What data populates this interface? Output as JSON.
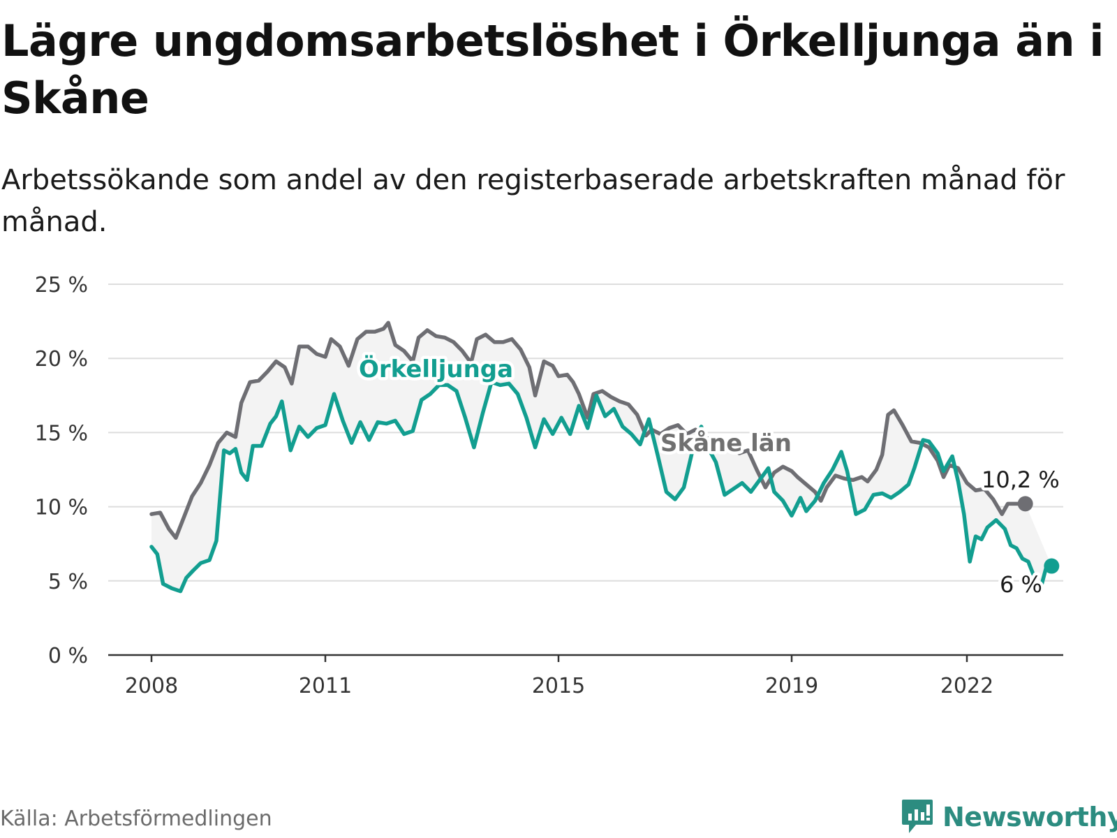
{
  "header": {
    "title": "Lägre ungdomsarbetslöshet i Örkelljunga än i Skåne",
    "subtitle": "Arbetssökande som andel av den registerbaserade arbetskraften månad för månad."
  },
  "footer": {
    "source": "Källa: Arbetsförmedlingen",
    "brand": "Newsworthy"
  },
  "colors": {
    "orkelljunga": "#129e90",
    "skane": "#6e6e73",
    "band": "#f3f3f3",
    "grid": "#dddddd",
    "axis": "#333333"
  },
  "chart_data": {
    "type": "line",
    "title": "Lägre ungdomsarbetslöshet i Örkelljunga än i Skåne",
    "xlabel": "",
    "ylabel": "",
    "xlim": [
      2008,
      2023.0
    ],
    "ylim": [
      0,
      25
    ],
    "y_ticks": [
      0,
      5,
      10,
      15,
      20,
      25
    ],
    "y_tick_labels": [
      "0 %",
      "5 %",
      "10 %",
      "15 %",
      "20 %",
      "25 %"
    ],
    "x_ticks": [
      2008,
      2011,
      2015,
      2019,
      2022
    ],
    "x_tick_labels": [
      "2008",
      "2011",
      "2015",
      "2019",
      "2022"
    ],
    "grid": true,
    "series": [
      {
        "name": "Skåne län",
        "label": "Skåne län",
        "end_label": "10,2 %",
        "points": [
          [
            2008.0,
            9.5
          ],
          [
            2008.15,
            9.6
          ],
          [
            2008.3,
            8.5
          ],
          [
            2008.42,
            7.9
          ],
          [
            2008.55,
            9.2
          ],
          [
            2008.7,
            10.7
          ],
          [
            2008.85,
            11.6
          ],
          [
            2009.0,
            12.8
          ],
          [
            2009.15,
            14.3
          ],
          [
            2009.3,
            15.0
          ],
          [
            2009.45,
            14.7
          ],
          [
            2009.55,
            17.0
          ],
          [
            2009.7,
            18.4
          ],
          [
            2009.85,
            18.5
          ],
          [
            2010.0,
            19.1
          ],
          [
            2010.15,
            19.8
          ],
          [
            2010.3,
            19.4
          ],
          [
            2010.42,
            18.3
          ],
          [
            2010.55,
            20.8
          ],
          [
            2010.7,
            20.8
          ],
          [
            2010.85,
            20.3
          ],
          [
            2011.0,
            20.1
          ],
          [
            2011.1,
            21.3
          ],
          [
            2011.25,
            20.8
          ],
          [
            2011.4,
            19.5
          ],
          [
            2011.55,
            21.3
          ],
          [
            2011.7,
            21.8
          ],
          [
            2011.85,
            21.8
          ],
          [
            2012.0,
            22.0
          ],
          [
            2012.08,
            22.4
          ],
          [
            2012.2,
            20.9
          ],
          [
            2012.35,
            20.5
          ],
          [
            2012.5,
            19.8
          ],
          [
            2012.6,
            21.4
          ],
          [
            2012.75,
            21.9
          ],
          [
            2012.9,
            21.5
          ],
          [
            2013.05,
            21.4
          ],
          [
            2013.2,
            21.1
          ],
          [
            2013.35,
            20.5
          ],
          [
            2013.5,
            19.7
          ],
          [
            2013.6,
            21.3
          ],
          [
            2013.75,
            21.6
          ],
          [
            2013.9,
            21.1
          ],
          [
            2014.05,
            21.1
          ],
          [
            2014.2,
            21.3
          ],
          [
            2014.35,
            20.6
          ],
          [
            2014.5,
            19.4
          ],
          [
            2014.6,
            17.5
          ],
          [
            2014.75,
            19.8
          ],
          [
            2014.9,
            19.5
          ],
          [
            2015.0,
            18.8
          ],
          [
            2015.15,
            18.9
          ],
          [
            2015.25,
            18.4
          ],
          [
            2015.35,
            17.6
          ],
          [
            2015.5,
            16.0
          ],
          [
            2015.6,
            17.6
          ],
          [
            2015.75,
            17.8
          ],
          [
            2015.9,
            17.4
          ],
          [
            2016.05,
            17.1
          ],
          [
            2016.2,
            16.9
          ],
          [
            2016.35,
            16.2
          ],
          [
            2016.5,
            14.8
          ],
          [
            2016.6,
            15.2
          ],
          [
            2016.75,
            14.9
          ],
          [
            2016.9,
            15.3
          ],
          [
            2017.05,
            15.5
          ],
          [
            2017.2,
            14.9
          ],
          [
            2017.35,
            15.2
          ],
          [
            2017.5,
            14.6
          ],
          [
            2017.65,
            14.6
          ],
          [
            2017.8,
            14.4
          ],
          [
            2017.95,
            14.3
          ],
          [
            2018.1,
            13.6
          ],
          [
            2018.25,
            13.8
          ],
          [
            2018.4,
            12.5
          ],
          [
            2018.55,
            11.3
          ],
          [
            2018.7,
            12.3
          ],
          [
            2018.85,
            12.7
          ],
          [
            2019.0,
            12.4
          ],
          [
            2019.1,
            12.0
          ],
          [
            2019.25,
            11.5
          ],
          [
            2019.4,
            11.0
          ],
          [
            2019.5,
            10.4
          ],
          [
            2019.6,
            11.3
          ],
          [
            2019.75,
            12.1
          ],
          [
            2019.9,
            11.9
          ],
          [
            2020.05,
            11.8
          ],
          [
            2020.2,
            12.0
          ],
          [
            2020.3,
            11.7
          ],
          [
            2020.45,
            12.5
          ],
          [
            2020.55,
            13.5
          ],
          [
            2020.65,
            16.2
          ],
          [
            2020.75,
            16.5
          ],
          [
            2020.9,
            15.5
          ],
          [
            2021.05,
            14.4
          ],
          [
            2021.2,
            14.3
          ],
          [
            2021.35,
            14.0
          ],
          [
            2021.5,
            13.1
          ],
          [
            2021.6,
            12.0
          ],
          [
            2021.7,
            12.8
          ],
          [
            2021.85,
            12.6
          ],
          [
            2022.0,
            11.6
          ],
          [
            2022.15,
            11.1
          ],
          [
            2022.3,
            11.2
          ],
          [
            2022.45,
            10.5
          ],
          [
            2022.6,
            9.5
          ],
          [
            2022.7,
            10.2
          ],
          [
            2022.85,
            10.2
          ],
          [
            2023.0,
            10.2
          ]
        ]
      },
      {
        "name": "Örkelljunga",
        "label": "Örkelljunga",
        "end_label": "6 %",
        "points": [
          [
            2008.0,
            7.3
          ],
          [
            2008.1,
            6.8
          ],
          [
            2008.2,
            4.8
          ],
          [
            2008.35,
            4.5
          ],
          [
            2008.5,
            4.3
          ],
          [
            2008.6,
            5.2
          ],
          [
            2008.72,
            5.7
          ],
          [
            2008.85,
            6.2
          ],
          [
            2009.0,
            6.4
          ],
          [
            2009.12,
            7.7
          ],
          [
            2009.25,
            13.8
          ],
          [
            2009.35,
            13.6
          ],
          [
            2009.45,
            13.9
          ],
          [
            2009.55,
            12.3
          ],
          [
            2009.65,
            11.8
          ],
          [
            2009.75,
            14.1
          ],
          [
            2009.9,
            14.1
          ],
          [
            2010.05,
            15.6
          ],
          [
            2010.15,
            16.1
          ],
          [
            2010.25,
            17.1
          ],
          [
            2010.4,
            13.8
          ],
          [
            2010.55,
            15.4
          ],
          [
            2010.7,
            14.7
          ],
          [
            2010.85,
            15.3
          ],
          [
            2011.0,
            15.5
          ],
          [
            2011.15,
            17.6
          ],
          [
            2011.3,
            15.8
          ],
          [
            2011.45,
            14.3
          ],
          [
            2011.6,
            15.7
          ],
          [
            2011.75,
            14.5
          ],
          [
            2011.9,
            15.7
          ],
          [
            2012.05,
            15.6
          ],
          [
            2012.2,
            15.8
          ],
          [
            2012.35,
            14.9
          ],
          [
            2012.5,
            15.1
          ],
          [
            2012.65,
            17.2
          ],
          [
            2012.8,
            17.6
          ],
          [
            2012.95,
            18.2
          ],
          [
            2013.1,
            18.2
          ],
          [
            2013.25,
            17.8
          ],
          [
            2013.4,
            16.0
          ],
          [
            2013.55,
            14.0
          ],
          [
            2013.7,
            16.3
          ],
          [
            2013.85,
            18.4
          ],
          [
            2014.0,
            18.2
          ],
          [
            2014.15,
            18.3
          ],
          [
            2014.3,
            17.6
          ],
          [
            2014.45,
            16.0
          ],
          [
            2014.6,
            14.0
          ],
          [
            2014.75,
            15.9
          ],
          [
            2014.9,
            14.9
          ],
          [
            2015.05,
            16.0
          ],
          [
            2015.2,
            14.9
          ],
          [
            2015.35,
            16.8
          ],
          [
            2015.5,
            15.3
          ],
          [
            2015.65,
            17.5
          ],
          [
            2015.8,
            16.1
          ],
          [
            2015.95,
            16.6
          ],
          [
            2016.1,
            15.4
          ],
          [
            2016.25,
            14.9
          ],
          [
            2016.4,
            14.2
          ],
          [
            2016.55,
            15.9
          ],
          [
            2016.7,
            13.5
          ],
          [
            2016.85,
            11.0
          ],
          [
            2017.0,
            10.5
          ],
          [
            2017.15,
            11.3
          ],
          [
            2017.3,
            13.8
          ],
          [
            2017.45,
            15.4
          ],
          [
            2017.55,
            14.1
          ],
          [
            2017.7,
            13.0
          ],
          [
            2017.85,
            10.8
          ],
          [
            2018.0,
            11.2
          ],
          [
            2018.15,
            11.6
          ],
          [
            2018.3,
            11.0
          ],
          [
            2018.45,
            11.8
          ],
          [
            2018.6,
            12.6
          ],
          [
            2018.7,
            11.0
          ],
          [
            2018.85,
            10.4
          ],
          [
            2019.0,
            9.4
          ],
          [
            2019.15,
            10.6
          ],
          [
            2019.25,
            9.7
          ],
          [
            2019.4,
            10.4
          ],
          [
            2019.55,
            11.6
          ],
          [
            2019.7,
            12.5
          ],
          [
            2019.85,
            13.7
          ],
          [
            2019.95,
            12.4
          ],
          [
            2020.1,
            9.5
          ],
          [
            2020.25,
            9.8
          ],
          [
            2020.4,
            10.8
          ],
          [
            2020.55,
            10.9
          ],
          [
            2020.7,
            10.6
          ],
          [
            2020.85,
            11.0
          ],
          [
            2021.0,
            11.5
          ],
          [
            2021.1,
            12.6
          ],
          [
            2021.25,
            14.5
          ],
          [
            2021.35,
            14.4
          ],
          [
            2021.5,
            13.6
          ],
          [
            2021.6,
            12.4
          ],
          [
            2021.75,
            13.4
          ],
          [
            2021.85,
            11.7
          ],
          [
            2021.95,
            9.5
          ],
          [
            2022.05,
            6.3
          ],
          [
            2022.15,
            8.0
          ],
          [
            2022.25,
            7.8
          ],
          [
            2022.35,
            8.6
          ],
          [
            2022.5,
            9.1
          ],
          [
            2022.65,
            8.5
          ],
          [
            2022.75,
            7.4
          ],
          [
            2022.85,
            7.2
          ],
          [
            2022.95,
            6.5
          ],
          [
            2023.05,
            6.3
          ],
          [
            2023.15,
            5.3
          ],
          [
            2023.25,
            4.3
          ],
          [
            2023.35,
            5.8
          ],
          [
            2023.45,
            6.0
          ]
        ]
      }
    ]
  }
}
